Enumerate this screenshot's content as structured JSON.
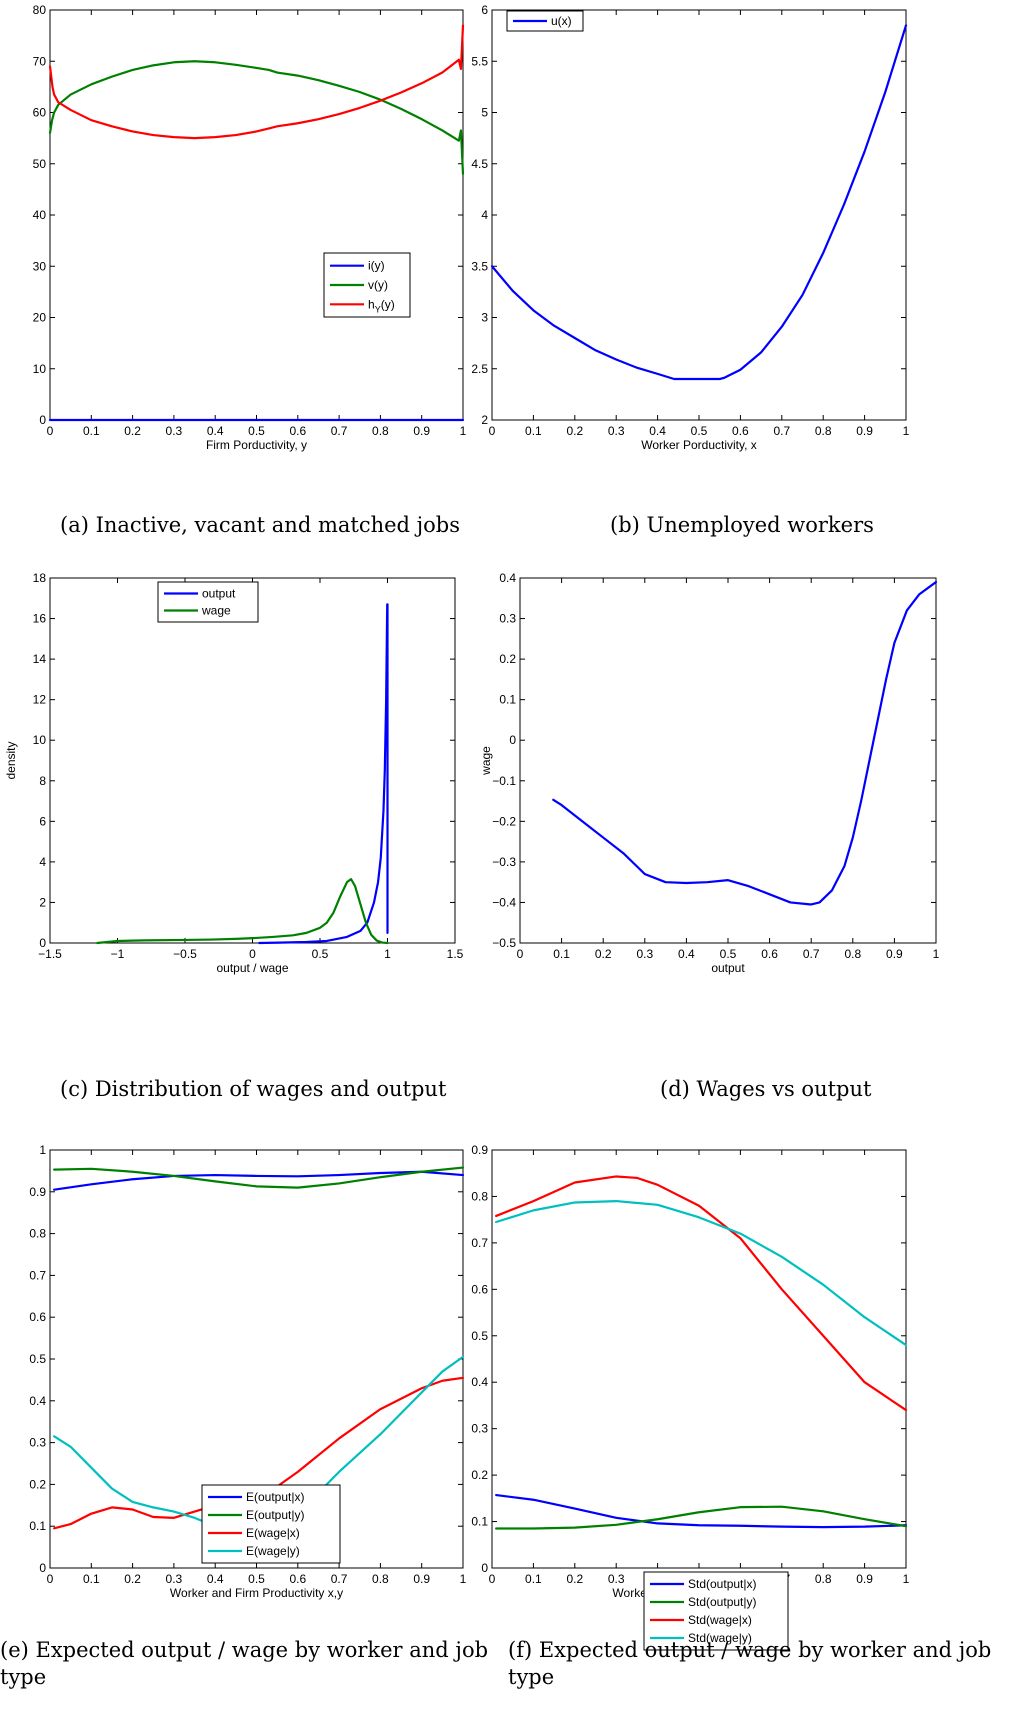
{
  "chart_data": [
    {
      "id": "a",
      "type": "line",
      "xlabel": "Firm Porductivity, y",
      "ylabel": "",
      "xlim": [
        0,
        1
      ],
      "ylim": [
        0,
        80
      ],
      "xticks": [
        "0",
        "0.1",
        "0.2",
        "0.3",
        "0.4",
        "0.5",
        "0.6",
        "0.7",
        "0.8",
        "0.9",
        "1"
      ],
      "yticks": [
        "0",
        "10",
        "20",
        "30",
        "40",
        "50",
        "60",
        "70",
        "80"
      ],
      "legend": "center-right",
      "caption": "(a) Inactive, vacant and matched jobs",
      "series": [
        {
          "name": "i(y)",
          "color": "#0000ff",
          "x": [
            0,
            0.5,
            1
          ],
          "y": [
            0,
            0,
            0
          ]
        },
        {
          "name": "v(y)",
          "color": "#008000",
          "x": [
            0,
            0.005,
            0.01,
            0.02,
            0.05,
            0.1,
            0.15,
            0.2,
            0.25,
            0.3,
            0.35,
            0.4,
            0.45,
            0.5,
            0.53,
            0.55,
            0.6,
            0.65,
            0.7,
            0.75,
            0.8,
            0.85,
            0.9,
            0.95,
            0.99,
            0.995,
            1.0
          ],
          "y": [
            56,
            58.5,
            60,
            61.5,
            63.5,
            65.5,
            67,
            68.3,
            69.2,
            69.8,
            70,
            69.8,
            69.3,
            68.7,
            68.3,
            67.8,
            67.2,
            66.3,
            65.2,
            64,
            62.5,
            60.7,
            58.7,
            56.5,
            54.5,
            56.5,
            48
          ]
        },
        {
          "name": "h_Y(y)",
          "color": "#ff0000",
          "x": [
            0,
            0.003,
            0.006,
            0.01,
            0.02,
            0.05,
            0.1,
            0.15,
            0.2,
            0.25,
            0.3,
            0.35,
            0.4,
            0.45,
            0.5,
            0.53,
            0.55,
            0.6,
            0.65,
            0.7,
            0.75,
            0.8,
            0.85,
            0.9,
            0.95,
            0.99,
            0.995,
            1.0
          ],
          "y": [
            69,
            67,
            65,
            63.5,
            62,
            60.5,
            58.5,
            57.3,
            56.3,
            55.6,
            55.2,
            55,
            55.2,
            55.6,
            56.3,
            56.9,
            57.3,
            57.9,
            58.7,
            59.7,
            60.9,
            62.3,
            63.9,
            65.7,
            67.8,
            70.3,
            68.5,
            77
          ]
        }
      ]
    },
    {
      "id": "b",
      "type": "line",
      "xlabel": "Worker Porductivity, x",
      "ylabel": "",
      "xlim": [
        0,
        1
      ],
      "ylim": [
        2,
        6
      ],
      "xticks": [
        "0",
        "0.1",
        "0.2",
        "0.3",
        "0.4",
        "0.5",
        "0.6",
        "0.7",
        "0.8",
        "0.9",
        "1"
      ],
      "yticks": [
        "2",
        "2.5",
        "3",
        "3.5",
        "4",
        "4.5",
        "5",
        "5.5",
        "6"
      ],
      "legend": "top-left",
      "caption": "(b) Unemployed workers",
      "series": [
        {
          "name": "u(x)",
          "color": "#0000ff",
          "x": [
            0,
            0.05,
            0.1,
            0.15,
            0.2,
            0.25,
            0.3,
            0.35,
            0.4,
            0.44,
            0.5,
            0.55,
            0.56,
            0.6,
            0.65,
            0.7,
            0.75,
            0.8,
            0.85,
            0.9,
            0.95,
            1.0
          ],
          "y": [
            3.5,
            3.26,
            3.07,
            2.92,
            2.8,
            2.68,
            2.59,
            2.51,
            2.45,
            2.4,
            2.4,
            2.4,
            2.41,
            2.49,
            2.66,
            2.91,
            3.22,
            3.63,
            4.1,
            4.62,
            5.2,
            5.85
          ]
        }
      ]
    },
    {
      "id": "c",
      "type": "line",
      "xlabel": "output / wage",
      "ylabel": "density",
      "xlim": [
        -1.5,
        1.5
      ],
      "ylim": [
        0,
        18
      ],
      "xticks": [
        "−1.5",
        "−1",
        "−0.5",
        "0",
        "0.5",
        "1",
        "1.5"
      ],
      "yticks": [
        "0",
        "2",
        "4",
        "6",
        "8",
        "10",
        "12",
        "14",
        "16",
        "18"
      ],
      "legend": "top-center",
      "caption": "(c) Distribution of wages and output",
      "series": [
        {
          "name": "output",
          "color": "#0000ff",
          "x": [
            0.05,
            0.2,
            0.4,
            0.55,
            0.7,
            0.8,
            0.85,
            0.9,
            0.93,
            0.95,
            0.97,
            0.98,
            0.99,
            0.995,
            0.998,
            1.0,
            1.0
          ],
          "y": [
            0,
            0.02,
            0.05,
            0.1,
            0.3,
            0.6,
            1.0,
            2.0,
            3.0,
            4.2,
            6.5,
            8.5,
            12,
            15,
            16.7,
            16.7,
            0.5
          ]
        },
        {
          "name": "wage",
          "color": "#008000",
          "x": [
            -1.15,
            -1.0,
            -0.8,
            -0.5,
            -0.3,
            -0.1,
            0,
            0.15,
            0.3,
            0.4,
            0.5,
            0.55,
            0.6,
            0.65,
            0.7,
            0.73,
            0.76,
            0.8,
            0.84,
            0.88,
            0.92,
            0.96,
            1.0
          ],
          "y": [
            0,
            0.1,
            0.13,
            0.15,
            0.17,
            0.21,
            0.24,
            0.3,
            0.38,
            0.5,
            0.75,
            1.0,
            1.5,
            2.3,
            3.0,
            3.15,
            2.8,
            1.9,
            1.0,
            0.4,
            0.12,
            0.02,
            0
          ]
        }
      ]
    },
    {
      "id": "d",
      "type": "line",
      "xlabel": "output",
      "ylabel": "wage",
      "xlim": [
        0,
        1
      ],
      "ylim": [
        -0.5,
        0.4
      ],
      "xticks": [
        "0",
        "0.1",
        "0.2",
        "0.3",
        "0.4",
        "0.5",
        "0.6",
        "0.7",
        "0.8",
        "0.9",
        "1"
      ],
      "yticks": [
        "−0.5",
        "−0.4",
        "−0.3",
        "−0.2",
        "−0.1",
        "0",
        "0.1",
        "0.2",
        "0.3",
        "0.4"
      ],
      "legend": "none",
      "caption": "(d) Wages vs output",
      "series": [
        {
          "name": "",
          "color": "#0000ff",
          "x": [
            0.08,
            0.1,
            0.15,
            0.2,
            0.25,
            0.3,
            0.35,
            0.4,
            0.45,
            0.5,
            0.55,
            0.6,
            0.65,
            0.7,
            0.72,
            0.75,
            0.78,
            0.8,
            0.82,
            0.85,
            0.88,
            0.9,
            0.93,
            0.96,
            1.0
          ],
          "y": [
            -0.147,
            -0.16,
            -0.2,
            -0.24,
            -0.28,
            -0.33,
            -0.35,
            -0.352,
            -0.35,
            -0.345,
            -0.36,
            -0.38,
            -0.4,
            -0.405,
            -0.4,
            -0.37,
            -0.31,
            -0.24,
            -0.15,
            0.0,
            0.15,
            0.24,
            0.32,
            0.36,
            0.39
          ]
        }
      ]
    },
    {
      "id": "e",
      "type": "line",
      "xlabel": "Worker and Firm Productivity x,y",
      "ylabel": "",
      "xlim": [
        0,
        1
      ],
      "ylim": [
        0,
        1
      ],
      "xticks": [
        "0",
        "0.1",
        "0.2",
        "0.3",
        "0.4",
        "0.5",
        "0.6",
        "0.7",
        "0.8",
        "0.9",
        "1"
      ],
      "yticks": [
        "0",
        "0.1",
        "0.2",
        "0.3",
        "0.4",
        "0.5",
        "0.6",
        "0.7",
        "0.8",
        "0.9",
        "1"
      ],
      "legend": "center",
      "caption": "(e) Expected output / wage by worker and job type",
      "series": [
        {
          "name": "E(output|x)",
          "color": "#0000ff",
          "x": [
            0.01,
            0.1,
            0.2,
            0.3,
            0.4,
            0.5,
            0.6,
            0.7,
            0.8,
            0.9,
            1.0
          ],
          "y": [
            0.905,
            0.918,
            0.93,
            0.938,
            0.94,
            0.938,
            0.937,
            0.94,
            0.945,
            0.948,
            0.94
          ]
        },
        {
          "name": "E(output|y)",
          "color": "#008000",
          "x": [
            0.01,
            0.1,
            0.2,
            0.3,
            0.4,
            0.5,
            0.6,
            0.7,
            0.8,
            0.9,
            1.0
          ],
          "y": [
            0.953,
            0.955,
            0.948,
            0.938,
            0.925,
            0.913,
            0.91,
            0.92,
            0.935,
            0.948,
            0.958
          ]
        },
        {
          "name": "E(wage|x)",
          "color": "#ff0000",
          "x": [
            0.01,
            0.05,
            0.1,
            0.15,
            0.2,
            0.25,
            0.3,
            0.35,
            0.4,
            0.45,
            0.5,
            0.55,
            0.6,
            0.7,
            0.8,
            0.9,
            0.95,
            1.0
          ],
          "y": [
            0.095,
            0.105,
            0.13,
            0.145,
            0.14,
            0.122,
            0.12,
            0.135,
            0.15,
            0.16,
            0.17,
            0.195,
            0.23,
            0.31,
            0.38,
            0.43,
            0.448,
            0.455
          ]
        },
        {
          "name": "E(wage|y)",
          "color": "#00bfbf",
          "x": [
            0.01,
            0.05,
            0.1,
            0.15,
            0.2,
            0.25,
            0.3,
            0.35,
            0.4,
            0.43,
            0.45,
            0.5,
            0.55,
            0.6,
            0.65,
            0.7,
            0.8,
            0.9,
            0.95,
            1.0
          ],
          "y": [
            0.315,
            0.29,
            0.24,
            0.19,
            0.158,
            0.145,
            0.135,
            0.12,
            0.1,
            0.095,
            0.097,
            0.115,
            0.13,
            0.145,
            0.18,
            0.23,
            0.32,
            0.42,
            0.47,
            0.505
          ]
        }
      ]
    },
    {
      "id": "f",
      "type": "line",
      "xlabel": "Worker and Firm Productivity x,y",
      "ylabel": "",
      "xlim": [
        0,
        1
      ],
      "ylim": [
        0,
        0.9
      ],
      "xticks": [
        "0",
        "0.1",
        "0.2",
        "0.3",
        "0.4",
        "0.5",
        "0.6",
        "0.7",
        "0.8",
        "0.9",
        "1"
      ],
      "yticks": [
        "0",
        "0.1",
        "0.2",
        "0.3",
        "0.4",
        "0.5",
        "0.6",
        "0.7",
        "0.8",
        "0.9"
      ],
      "legend": "center",
      "caption": "(f) Expected output / wage by worker and job type",
      "series": [
        {
          "name": "Std(output|x)",
          "color": "#0000ff",
          "x": [
            0.01,
            0.1,
            0.2,
            0.3,
            0.4,
            0.5,
            0.6,
            0.7,
            0.8,
            0.9,
            1.0
          ],
          "y": [
            0.157,
            0.147,
            0.128,
            0.108,
            0.096,
            0.092,
            0.091,
            0.089,
            0.088,
            0.089,
            0.092
          ]
        },
        {
          "name": "Std(output|y)",
          "color": "#008000",
          "x": [
            0.01,
            0.1,
            0.2,
            0.3,
            0.4,
            0.5,
            0.6,
            0.7,
            0.8,
            0.9,
            1.0
          ],
          "y": [
            0.085,
            0.085,
            0.087,
            0.093,
            0.105,
            0.12,
            0.131,
            0.132,
            0.122,
            0.105,
            0.09
          ]
        },
        {
          "name": "Std(wage|x)",
          "color": "#ff0000",
          "x": [
            0.01,
            0.1,
            0.2,
            0.3,
            0.35,
            0.4,
            0.5,
            0.6,
            0.7,
            0.8,
            0.9,
            1.0
          ],
          "y": [
            0.758,
            0.79,
            0.83,
            0.843,
            0.84,
            0.825,
            0.78,
            0.71,
            0.6,
            0.5,
            0.4,
            0.34
          ]
        },
        {
          "name": "Std(wage|y)",
          "color": "#00bfbf",
          "x": [
            0.01,
            0.1,
            0.2,
            0.3,
            0.4,
            0.5,
            0.6,
            0.7,
            0.8,
            0.9,
            1.0
          ],
          "y": [
            0.745,
            0.77,
            0.787,
            0.79,
            0.782,
            0.755,
            0.72,
            0.67,
            0.61,
            0.54,
            0.48
          ]
        }
      ]
    }
  ]
}
